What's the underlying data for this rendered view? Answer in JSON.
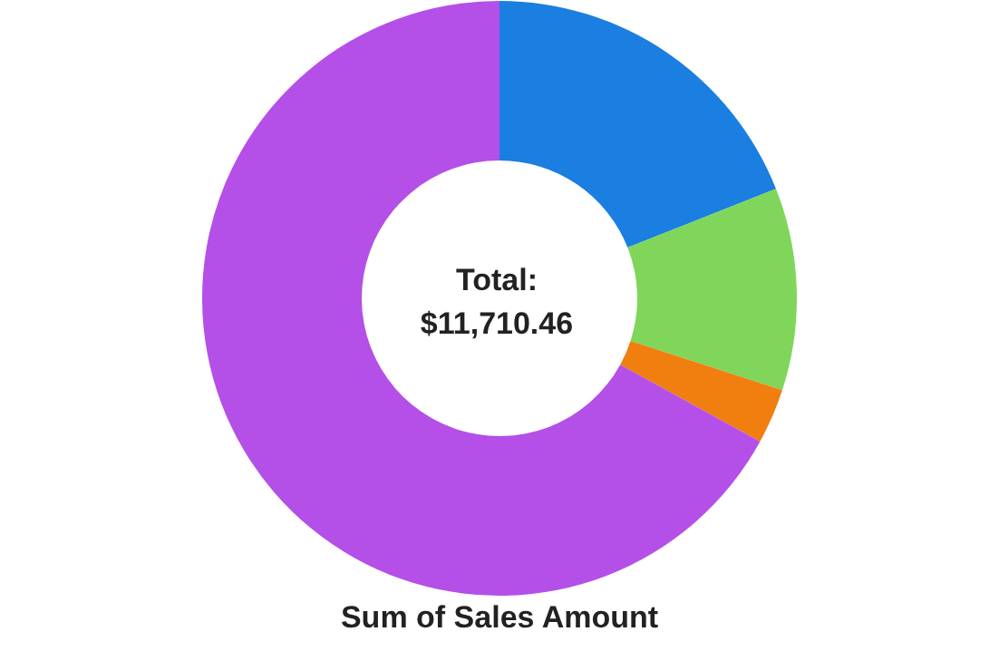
{
  "chart_data": {
    "type": "donut",
    "title": "Sum of Sales Amount",
    "categories": [
      null,
      null,
      null,
      null
    ],
    "values": [
      19,
      11,
      3,
      67
    ],
    "colors": [
      "#1a7fe0",
      "#7fd65a",
      "#f07f10",
      "#b44fe8"
    ],
    "annotations": [
      "Total:",
      "$11,710.46"
    ]
  }
}
